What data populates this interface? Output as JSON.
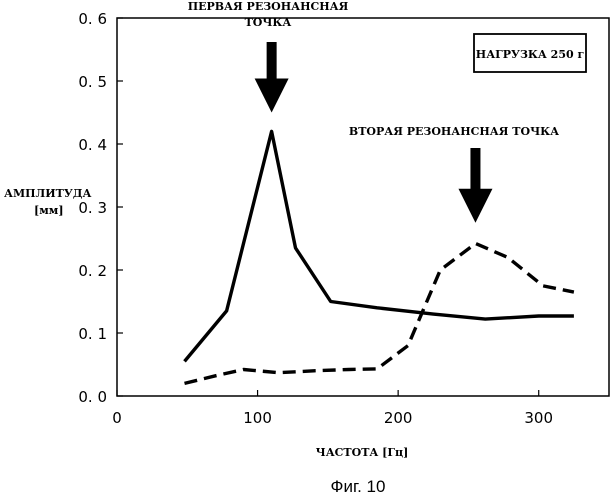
{
  "chart_data": {
    "type": "line",
    "ylabel_lines": [
      "АМПЛИТУДА",
      "[мм]"
    ],
    "xlabel": "ЧАСТОТА [Гц]",
    "xlim": [
      0,
      350
    ],
    "ylim": [
      0,
      0.6
    ],
    "x_ticks": [
      0,
      100,
      200,
      300
    ],
    "x_tick_labels": [
      "0",
      "100",
      "200",
      "300"
    ],
    "y_ticks": [
      0,
      0.1,
      0.2,
      0.3,
      0.4,
      0.5,
      0.6
    ],
    "y_tick_labels": [
      "0. 0",
      "0. 1",
      "0. 2",
      "0. 3",
      "0. 4",
      "0. 5",
      "0. 6"
    ],
    "grid": false,
    "legend_box": "НАГРУЗКА 250 г",
    "legend_placement": "top-right",
    "series": [
      {
        "style": "solid",
        "x": [
          48,
          78,
          110,
          127,
          152,
          185,
          225,
          262,
          300,
          325
        ],
        "y": [
          0.055,
          0.135,
          0.42,
          0.235,
          0.15,
          0.14,
          0.13,
          0.122,
          0.127,
          0.127
        ]
      },
      {
        "style": "dashed",
        "x": [
          48,
          70,
          90,
          115,
          140,
          165,
          185,
          207,
          230,
          255,
          278,
          303,
          325
        ],
        "y": [
          0.02,
          0.032,
          0.042,
          0.037,
          0.04,
          0.042,
          0.043,
          0.08,
          0.2,
          0.242,
          0.22,
          0.175,
          0.165
        ]
      }
    ],
    "annotations": [
      {
        "lines": [
          "ПЕРВАЯ РЕЗОНАНСНАЯ",
          "ТОЧКА"
        ],
        "arrow_x": 110,
        "arrow_y": 0.45
      },
      {
        "lines": [
          "ВТОРАЯ РЕЗОНАНСНАЯ ТОЧКА"
        ],
        "arrow_x": 255,
        "arrow_y": 0.275
      }
    ]
  },
  "caption": "Фиг. 10"
}
